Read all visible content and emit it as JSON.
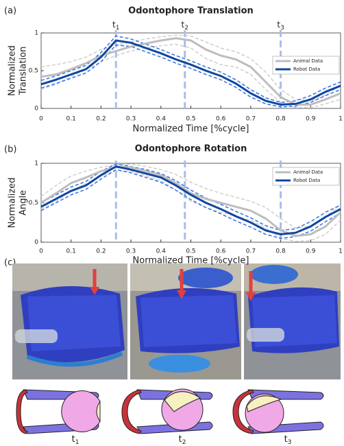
{
  "chart_data": [
    {
      "type": "line",
      "title": "Odontophore Translation",
      "xlabel": "Normalized Time [%cycle]",
      "ylabel": [
        "Normalized",
        "Translation"
      ],
      "x": [
        0,
        0.05,
        0.1,
        0.15,
        0.2,
        0.25,
        0.3,
        0.35,
        0.4,
        0.45,
        0.5,
        0.55,
        0.6,
        0.65,
        0.7,
        0.75,
        0.8,
        0.85,
        0.9,
        0.95,
        1
      ],
      "series": [
        {
          "name": "Animal Data",
          "color": "#bdbdbd",
          "band_color": "#cdcdcd",
          "values": [
            0.42,
            0.45,
            0.52,
            0.6,
            0.7,
            0.76,
            0.82,
            0.86,
            0.9,
            0.93,
            0.9,
            0.78,
            0.7,
            0.65,
            0.55,
            0.35,
            0.15,
            0.05,
            0.05,
            0.12,
            0.2
          ],
          "lower": [
            0.25,
            0.32,
            0.42,
            0.52,
            0.62,
            0.7,
            0.76,
            0.8,
            0.83,
            0.85,
            0.8,
            0.66,
            0.58,
            0.55,
            0.45,
            0.25,
            0.08,
            0.01,
            0.01,
            0.06,
            0.12
          ],
          "upper": [
            0.55,
            0.58,
            0.62,
            0.68,
            0.78,
            0.84,
            0.88,
            0.92,
            0.95,
            0.97,
            0.96,
            0.88,
            0.8,
            0.75,
            0.66,
            0.48,
            0.25,
            0.12,
            0.1,
            0.18,
            0.3
          ]
        },
        {
          "name": "Robot Data",
          "color": "#0d47a1",
          "band_color": "#3a6fd8",
          "values": [
            0.32,
            0.38,
            0.45,
            0.52,
            0.68,
            0.9,
            0.87,
            0.8,
            0.73,
            0.65,
            0.58,
            0.5,
            0.43,
            0.33,
            0.2,
            0.1,
            0.05,
            0.06,
            0.12,
            0.22,
            0.3
          ],
          "lower": [
            0.27,
            0.33,
            0.4,
            0.47,
            0.62,
            0.84,
            0.82,
            0.75,
            0.68,
            0.6,
            0.53,
            0.45,
            0.38,
            0.28,
            0.15,
            0.06,
            0.02,
            0.03,
            0.08,
            0.17,
            0.25
          ],
          "upper": [
            0.37,
            0.43,
            0.5,
            0.57,
            0.74,
            0.96,
            0.92,
            0.85,
            0.78,
            0.7,
            0.63,
            0.55,
            0.48,
            0.38,
            0.25,
            0.14,
            0.08,
            0.1,
            0.17,
            0.27,
            0.35
          ]
        }
      ],
      "markers": [
        {
          "x": 0.25,
          "label": "t",
          "sub": "1"
        },
        {
          "x": 0.48,
          "label": "t",
          "sub": "2"
        },
        {
          "x": 0.8,
          "label": "t",
          "sub": "3"
        }
      ],
      "marker_color": "#a9bde8",
      "xlim": [
        0,
        1
      ],
      "xticks": [
        0,
        0.1,
        0.2,
        0.3,
        0.4,
        0.5,
        0.6,
        0.7,
        0.8,
        0.9,
        1
      ],
      "ylim": [
        0,
        1
      ],
      "yticks": [
        0,
        0.5,
        1
      ],
      "legend": "upper right"
    },
    {
      "type": "line",
      "title": "Odontophore Rotation",
      "xlabel": "Normalized Time [%cycle]",
      "ylabel": [
        "Normalized",
        "Angle"
      ],
      "x": [
        0,
        0.05,
        0.1,
        0.15,
        0.2,
        0.25,
        0.3,
        0.35,
        0.4,
        0.45,
        0.5,
        0.55,
        0.6,
        0.65,
        0.7,
        0.75,
        0.8,
        0.85,
        0.9,
        0.95,
        1
      ],
      "series": [
        {
          "name": "Animal Data",
          "color": "#bdbdbd",
          "band_color": "#cdcdcd",
          "values": [
            0.5,
            0.62,
            0.75,
            0.82,
            0.9,
            0.95,
            0.95,
            0.9,
            0.85,
            0.75,
            0.62,
            0.55,
            0.5,
            0.45,
            0.4,
            0.3,
            0.15,
            0.08,
            0.1,
            0.2,
            0.38
          ],
          "lower": [
            0.42,
            0.52,
            0.65,
            0.74,
            0.84,
            0.9,
            0.9,
            0.84,
            0.78,
            0.66,
            0.52,
            0.44,
            0.38,
            0.33,
            0.28,
            0.18,
            0.05,
            0.01,
            0.02,
            0.1,
            0.28
          ],
          "upper": [
            0.58,
            0.72,
            0.84,
            0.9,
            0.95,
            0.98,
            0.99,
            0.96,
            0.92,
            0.86,
            0.76,
            0.68,
            0.62,
            0.57,
            0.52,
            0.44,
            0.3,
            0.18,
            0.2,
            0.32,
            0.48
          ]
        },
        {
          "name": "Robot Data",
          "color": "#0d47a1",
          "band_color": "#3a6fd8",
          "values": [
            0.45,
            0.55,
            0.65,
            0.72,
            0.85,
            0.96,
            0.92,
            0.87,
            0.82,
            0.72,
            0.6,
            0.5,
            0.42,
            0.33,
            0.25,
            0.15,
            0.1,
            0.12,
            0.2,
            0.32,
            0.42
          ],
          "lower": [
            0.4,
            0.5,
            0.6,
            0.67,
            0.8,
            0.92,
            0.88,
            0.82,
            0.76,
            0.66,
            0.54,
            0.44,
            0.36,
            0.27,
            0.19,
            0.1,
            0.05,
            0.07,
            0.14,
            0.26,
            0.37
          ],
          "upper": [
            0.5,
            0.6,
            0.7,
            0.77,
            0.9,
            0.99,
            0.96,
            0.92,
            0.87,
            0.78,
            0.66,
            0.56,
            0.48,
            0.39,
            0.31,
            0.21,
            0.15,
            0.17,
            0.26,
            0.38,
            0.47
          ]
        }
      ],
      "markers": [
        {
          "x": 0.25
        },
        {
          "x": 0.48
        },
        {
          "x": 0.8
        }
      ],
      "marker_color": "#a9bde8",
      "xlim": [
        0,
        1
      ],
      "xticks": [
        0,
        0.1,
        0.2,
        0.3,
        0.4,
        0.5,
        0.6,
        0.7,
        0.8,
        0.9,
        1
      ],
      "ylim": [
        0,
        1
      ],
      "yticks": [
        0,
        0.5,
        1
      ],
      "legend": "upper right"
    }
  ],
  "panel_labels": [
    "(a)",
    "(b)",
    "(c)"
  ],
  "diagram_labels": [
    {
      "label": "t",
      "sub": "1"
    },
    {
      "label": "t",
      "sub": "2"
    },
    {
      "label": "t",
      "sub": "3"
    }
  ]
}
